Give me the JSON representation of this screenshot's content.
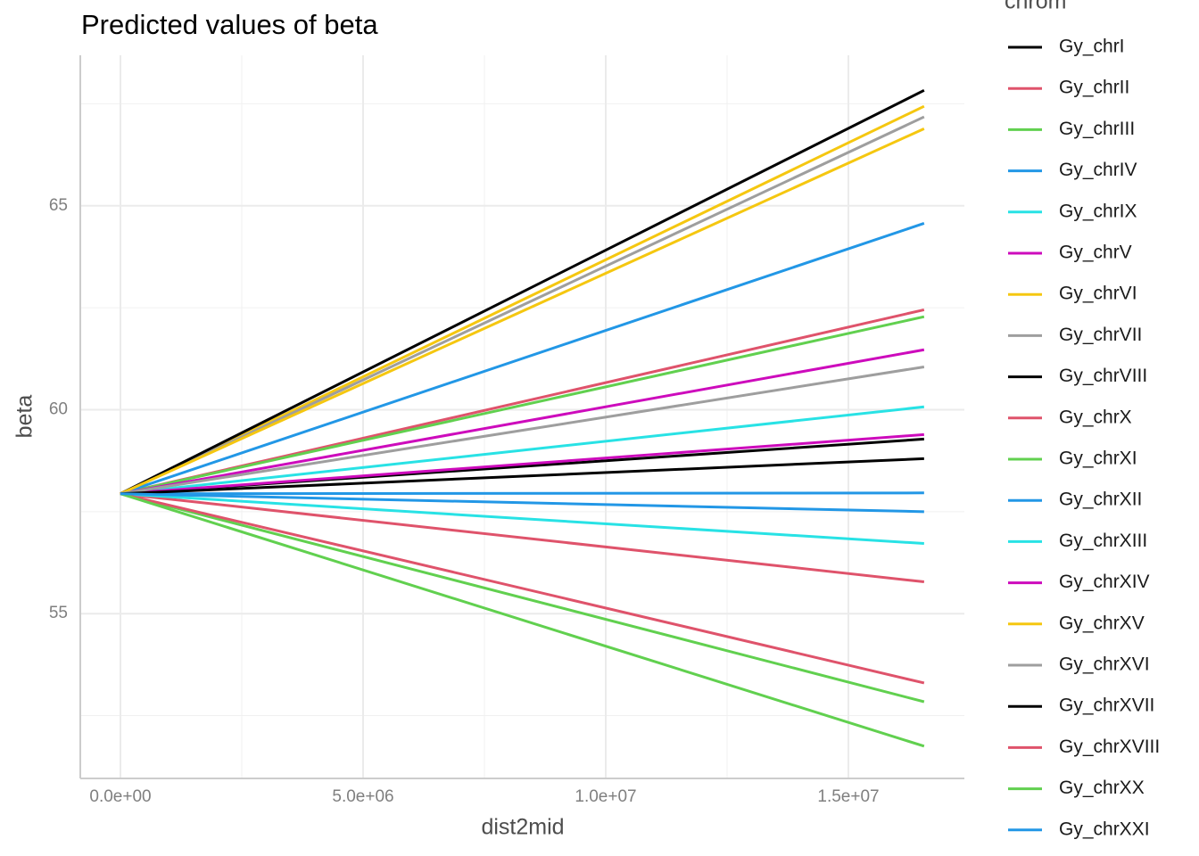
{
  "chart_data": {
    "type": "line",
    "title": "Predicted values of beta",
    "x_label": "dist2mid",
    "y_label": "beta",
    "legend_title": "chrom",
    "legend_position": "right",
    "grid": true,
    "x": [
      0,
      16560000
    ],
    "xlim": [
      -827000,
      17390000
    ],
    "ylim": [
      50.96,
      68.69
    ],
    "xticks": [
      {
        "value": 0,
        "label": "0.0e+00"
      },
      {
        "value": 5000000,
        "label": "5.0e+06"
      },
      {
        "value": 10000000,
        "label": "1.0e+07"
      },
      {
        "value": 15000000,
        "label": "1.5e+07"
      }
    ],
    "yticks": [
      55,
      60,
      65
    ],
    "series": [
      {
        "name": "Gy_chrI",
        "color": "#000000",
        "values": [
          57.94,
          59.28
        ]
      },
      {
        "name": "Gy_chrII",
        "color": "#DF536B",
        "values": [
          57.94,
          62.45
        ]
      },
      {
        "name": "Gy_chrIII",
        "color": "#61D04F",
        "values": [
          57.94,
          62.28
        ]
      },
      {
        "name": "Gy_chrIV",
        "color": "#2297E6",
        "values": [
          57.94,
          64.57
        ]
      },
      {
        "name": "Gy_chrIX",
        "color": "#28E2E5",
        "values": [
          57.94,
          60.07
        ]
      },
      {
        "name": "Gy_chrV",
        "color": "#CD0BBC",
        "values": [
          57.94,
          61.47
        ]
      },
      {
        "name": "Gy_chrVI",
        "color": "#F5C710",
        "values": [
          57.94,
          67.44
        ]
      },
      {
        "name": "Gy_chrVII",
        "color": "#9E9E9E",
        "values": [
          57.94,
          67.18
        ]
      },
      {
        "name": "Gy_chrVIII",
        "color": "#000000",
        "values": [
          57.94,
          67.83
        ]
      },
      {
        "name": "Gy_chrX",
        "color": "#DF536B",
        "values": [
          57.94,
          55.78
        ]
      },
      {
        "name": "Gy_chrXI",
        "color": "#61D04F",
        "values": [
          57.94,
          52.84
        ]
      },
      {
        "name": "Gy_chrXII",
        "color": "#2297E6",
        "values": [
          57.94,
          57.96
        ]
      },
      {
        "name": "Gy_chrXIII",
        "color": "#28E2E5",
        "values": [
          57.94,
          56.72
        ]
      },
      {
        "name": "Gy_chrXIV",
        "color": "#CD0BBC",
        "values": [
          57.94,
          59.39
        ]
      },
      {
        "name": "Gy_chrXV",
        "color": "#F5C710",
        "values": [
          57.94,
          66.89
        ]
      },
      {
        "name": "Gy_chrXVI",
        "color": "#9E9E9E",
        "values": [
          57.94,
          61.05
        ]
      },
      {
        "name": "Gy_chrXVII",
        "color": "#000000",
        "values": [
          57.94,
          58.8
        ]
      },
      {
        "name": "Gy_chrXVIII",
        "color": "#DF536B",
        "values": [
          57.94,
          53.3
        ]
      },
      {
        "name": "Gy_chrXX",
        "color": "#61D04F",
        "values": [
          57.94,
          51.75
        ]
      },
      {
        "name": "Gy_chrXXI",
        "color": "#2297E6",
        "values": [
          57.94,
          57.5
        ]
      }
    ]
  }
}
